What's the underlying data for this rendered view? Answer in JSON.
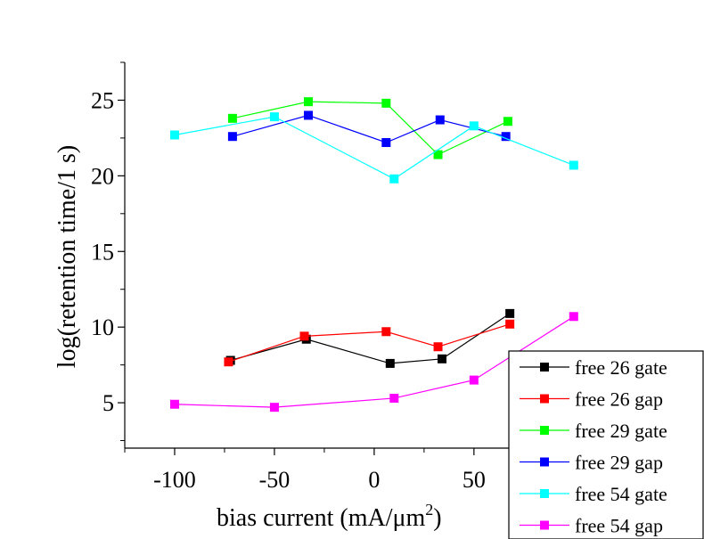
{
  "chart_data": {
    "type": "line",
    "title": "",
    "xlabel": "bias current (mA/μm",
    "xlabel_superscript": "2",
    "xlabel_suffix": ")",
    "ylabel": "log(retention time/1 s)",
    "xlim": [
      -125,
      105
    ],
    "ylim": [
      2,
      27.5
    ],
    "xticks": [
      -100,
      -50,
      0,
      50
    ],
    "xtick_labels": [
      "-100",
      "-50",
      "0",
      "50"
    ],
    "yticks": [
      5,
      10,
      15,
      20,
      25
    ],
    "ytick_labels": [
      "5",
      "10",
      "15",
      "20",
      "25"
    ],
    "grid": false,
    "legend_position": "bottom-right",
    "series": [
      {
        "name": "free 26 gate",
        "color": "#000000",
        "x": [
          -72,
          -34,
          8,
          34,
          68
        ],
        "y": [
          7.8,
          9.2,
          7.6,
          7.9,
          10.9
        ]
      },
      {
        "name": "free 26 gap",
        "color": "#ff0000",
        "x": [
          -73,
          -35,
          6,
          32,
          68
        ],
        "y": [
          7.7,
          9.4,
          9.7,
          8.7,
          10.2
        ]
      },
      {
        "name": "free 29 gate",
        "color": "#00ff00",
        "x": [
          -71,
          -33,
          6,
          32,
          67
        ],
        "y": [
          23.8,
          24.9,
          24.8,
          21.4,
          23.6
        ]
      },
      {
        "name": "free 29 gap",
        "color": "#0000ff",
        "x": [
          -71,
          -33,
          6,
          33,
          66
        ],
        "y": [
          22.6,
          24.0,
          22.2,
          23.7,
          22.6
        ]
      },
      {
        "name": "free 54 gate",
        "color": "#00ffff",
        "x": [
          -100,
          -50,
          10,
          50,
          100
        ],
        "y": [
          22.7,
          23.9,
          19.8,
          23.3,
          20.7
        ]
      },
      {
        "name": "free 54 gap",
        "color": "#ff00ff",
        "x": [
          -100,
          -50,
          10,
          50,
          100
        ],
        "y": [
          4.9,
          4.7,
          5.3,
          6.5,
          10.7
        ]
      }
    ]
  }
}
